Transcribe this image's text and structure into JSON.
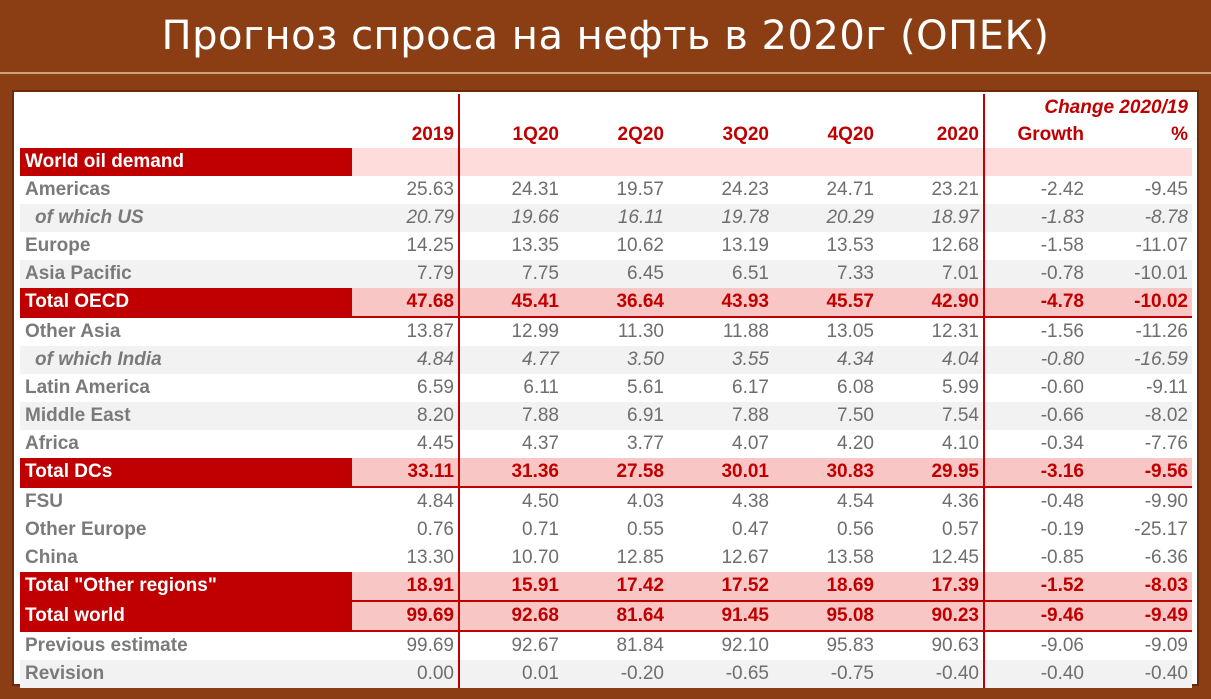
{
  "title": "Прогноз спроса на нефть в 2020г (ОПЕК)",
  "table": {
    "change_header": "Change 2020/19",
    "columns": [
      "2019",
      "1Q20",
      "2Q20",
      "3Q20",
      "4Q20",
      "2020",
      "Growth",
      "%"
    ],
    "section_label": "World oil demand",
    "rows": [
      {
        "label": "Americas",
        "values": [
          "25.63",
          "24.31",
          "19.57",
          "24.23",
          "24.71",
          "23.21",
          "-2.42",
          "-9.45"
        ]
      },
      {
        "label": "of which US",
        "values": [
          "20.79",
          "19.66",
          "16.11",
          "19.78",
          "20.29",
          "18.97",
          "-1.83",
          "-8.78"
        ]
      },
      {
        "label": "Europe",
        "values": [
          "14.25",
          "13.35",
          "10.62",
          "13.19",
          "13.53",
          "12.68",
          "-1.58",
          "-11.07"
        ]
      },
      {
        "label": "Asia Pacific",
        "values": [
          "7.79",
          "7.75",
          "6.45",
          "6.51",
          "7.33",
          "7.01",
          "-0.78",
          "-10.01"
        ]
      },
      {
        "label": "Total OECD",
        "values": [
          "47.68",
          "45.41",
          "36.64",
          "43.93",
          "45.57",
          "42.90",
          "-4.78",
          "-10.02"
        ]
      },
      {
        "label": "Other Asia",
        "values": [
          "13.87",
          "12.99",
          "11.30",
          "11.88",
          "13.05",
          "12.31",
          "-1.56",
          "-11.26"
        ]
      },
      {
        "label": "of which India",
        "values": [
          "4.84",
          "4.77",
          "3.50",
          "3.55",
          "4.34",
          "4.04",
          "-0.80",
          "-16.59"
        ]
      },
      {
        "label": "Latin America",
        "values": [
          "6.59",
          "6.11",
          "5.61",
          "6.17",
          "6.08",
          "5.99",
          "-0.60",
          "-9.11"
        ]
      },
      {
        "label": "Middle East",
        "values": [
          "8.20",
          "7.88",
          "6.91",
          "7.88",
          "7.50",
          "7.54",
          "-0.66",
          "-8.02"
        ]
      },
      {
        "label": "Africa",
        "values": [
          "4.45",
          "4.37",
          "3.77",
          "4.07",
          "4.20",
          "4.10",
          "-0.34",
          "-7.76"
        ]
      },
      {
        "label": "Total DCs",
        "values": [
          "33.11",
          "31.36",
          "27.58",
          "30.01",
          "30.83",
          "29.95",
          "-3.16",
          "-9.56"
        ]
      },
      {
        "label": "FSU",
        "values": [
          "4.84",
          "4.50",
          "4.03",
          "4.38",
          "4.54",
          "4.36",
          "-0.48",
          "-9.90"
        ]
      },
      {
        "label": "Other Europe",
        "values": [
          "0.76",
          "0.71",
          "0.55",
          "0.47",
          "0.56",
          "0.57",
          "-0.19",
          "-25.17"
        ]
      },
      {
        "label": "China",
        "values": [
          "13.30",
          "10.70",
          "12.85",
          "12.67",
          "13.58",
          "12.45",
          "-0.85",
          "-6.36"
        ]
      },
      {
        "label": "Total \"Other regions\"",
        "values": [
          "18.91",
          "15.91",
          "17.42",
          "17.52",
          "18.69",
          "17.39",
          "-1.52",
          "-8.03"
        ]
      },
      {
        "label": "Total world",
        "values": [
          "99.69",
          "92.68",
          "81.64",
          "91.45",
          "95.08",
          "90.23",
          "-9.46",
          "-9.49"
        ]
      },
      {
        "label": "Previous estimate",
        "values": [
          "99.69",
          "92.67",
          "81.84",
          "92.10",
          "95.83",
          "90.63",
          "-9.06",
          "-9.09"
        ]
      },
      {
        "label": "Revision",
        "values": [
          "0.00",
          "0.01",
          "-0.20",
          "-0.65",
          "-0.75",
          "-0.40",
          "-0.40",
          "-0.40"
        ]
      }
    ]
  },
  "colors": {
    "frame": "#8b3e14",
    "accent_red": "#c00000",
    "total_fill": "#f9c6c6",
    "section_fill": "#ffdcdc",
    "shade": "#f2f2f2"
  }
}
